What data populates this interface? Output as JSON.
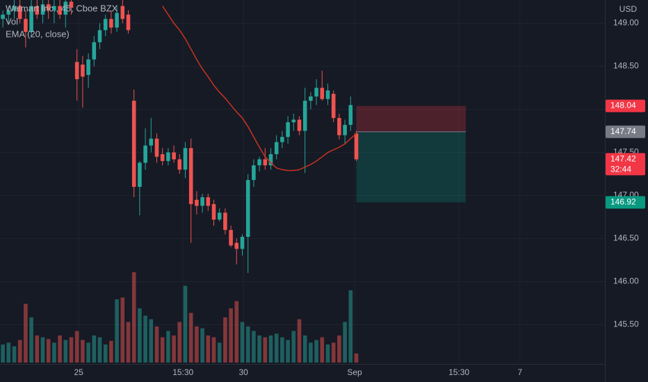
{
  "chart_data": {
    "type": "candlestick",
    "title": "Walmart Inc., 45, Cboe BZX",
    "volume_name": "Vol",
    "currency": "USD",
    "up_color": "#26a69a",
    "down_color": "#ef5350",
    "categories": [
      null,
      null,
      null,
      null,
      null,
      null,
      null,
      null,
      null,
      null,
      null,
      null,
      null,
      null,
      null,
      null,
      null,
      null,
      null,
      null,
      null,
      null,
      null,
      null,
      null,
      null,
      null,
      null,
      null,
      null,
      null,
      null,
      null,
      null,
      null,
      null,
      null,
      null,
      null,
      null,
      null,
      null,
      null,
      null,
      null,
      null,
      null,
      null,
      null,
      null,
      null,
      null,
      null,
      null,
      null,
      null,
      null,
      null,
      null,
      null,
      null,
      null,
      null
    ],
    "open": [
      149.05,
      149.1,
      149.15,
      149.2,
      149.05,
      148.9,
      149.2,
      149.1,
      149.22,
      149.15,
      149.2,
      149.1,
      149.25,
      148.55,
      148.52,
      148.4,
      148.58,
      148.78,
      148.92,
      149.05,
      148.95,
      149.2,
      149.1,
      148.1,
      147.1,
      147.38,
      147.58,
      147.66,
      147.48,
      147.4,
      147.5,
      147.42,
      147.3,
      147.55,
      146.95,
      146.88,
      146.98,
      146.9,
      146.72,
      146.8,
      146.6,
      146.45,
      146.38,
      146.52,
      147.18,
      147.35,
      147.42,
      147.35,
      147.48,
      147.62,
      147.68,
      147.85,
      147.88,
      147.75,
      148.1,
      148.15,
      148.25,
      148.12,
      148.18,
      147.9,
      147.7,
      147.82,
      147.72
    ],
    "high": [
      149.15,
      149.2,
      149.27,
      149.27,
      149.15,
      149.27,
      149.27,
      149.27,
      149.27,
      149.27,
      149.27,
      149.27,
      149.27,
      148.7,
      148.62,
      148.65,
      148.85,
      149.0,
      149.1,
      149.15,
      149.2,
      149.27,
      149.15,
      148.23,
      147.4,
      147.78,
      147.9,
      147.72,
      147.55,
      147.55,
      147.58,
      147.48,
      147.62,
      147.66,
      147.05,
      147.02,
      147.02,
      146.95,
      146.85,
      146.85,
      146.65,
      146.5,
      146.55,
      147.25,
      147.42,
      147.45,
      147.55,
      147.55,
      147.7,
      147.75,
      147.92,
      147.95,
      147.92,
      148.25,
      148.2,
      148.35,
      148.45,
      148.3,
      148.22,
      147.95,
      147.88,
      148.15,
      147.75
    ],
    "low": [
      148.95,
      149.0,
      149.05,
      149.0,
      148.72,
      148.85,
      149.05,
      149.0,
      149.05,
      149.0,
      149.05,
      148.95,
      149.1,
      148.1,
      148.02,
      148.25,
      148.5,
      148.7,
      148.85,
      148.88,
      148.9,
      149.0,
      148.88,
      146.98,
      146.77,
      147.3,
      147.5,
      147.38,
      147.35,
      147.35,
      147.38,
      147.25,
      147.2,
      146.45,
      146.78,
      146.8,
      146.82,
      146.65,
      146.7,
      146.55,
      146.4,
      146.2,
      146.3,
      146.1,
      147.1,
      147.28,
      147.3,
      147.3,
      147.42,
      147.55,
      147.6,
      147.75,
      147.7,
      147.26,
      148.0,
      148.05,
      148.1,
      148.05,
      147.85,
      147.65,
      147.6,
      147.75,
      147.4
    ],
    "close": [
      149.1,
      149.15,
      149.2,
      149.05,
      148.9,
      149.2,
      149.1,
      149.22,
      149.15,
      149.2,
      149.1,
      149.25,
      149.18,
      148.35,
      148.38,
      148.58,
      148.78,
      148.92,
      149.05,
      148.95,
      149.12,
      149.05,
      148.92,
      147.1,
      147.38,
      147.58,
      147.66,
      147.45,
      147.4,
      147.5,
      147.42,
      147.3,
      147.55,
      146.9,
      146.88,
      146.98,
      146.88,
      146.72,
      146.8,
      146.6,
      146.42,
      146.38,
      146.52,
      147.18,
      147.35,
      147.42,
      147.35,
      147.48,
      147.62,
      147.68,
      147.85,
      147.88,
      147.75,
      148.1,
      148.15,
      148.25,
      148.12,
      148.22,
      147.9,
      147.7,
      147.82,
      148.05,
      147.42
    ],
    "volume": [
      20,
      22,
      18,
      25,
      65,
      50,
      30,
      28,
      26,
      22,
      30,
      25,
      28,
      35,
      25,
      22,
      30,
      28,
      20,
      24,
      70,
      72,
      45,
      100,
      60,
      52,
      48,
      40,
      28,
      35,
      30,
      45,
      85,
      55,
      40,
      38,
      30,
      28,
      22,
      50,
      60,
      68,
      45,
      40,
      35,
      30,
      28,
      30,
      32,
      28,
      25,
      35,
      48,
      30,
      22,
      25,
      28,
      20,
      22,
      30,
      45,
      80,
      10
    ],
    "ema": {
      "name": "EMA (20, close)",
      "color": "#c9331f",
      "values": [
        null,
        null,
        null,
        null,
        null,
        null,
        null,
        null,
        null,
        null,
        null,
        null,
        null,
        null,
        null,
        null,
        null,
        null,
        null,
        null,
        null,
        null,
        null,
        null,
        null,
        null,
        null,
        null,
        149.2,
        149.1,
        149.0,
        148.92,
        148.82,
        148.7,
        148.58,
        148.47,
        148.38,
        148.28,
        148.2,
        148.13,
        148.05,
        147.97,
        147.9,
        147.8,
        147.68,
        147.56,
        147.45,
        147.38,
        147.32,
        147.3,
        147.29,
        147.29,
        147.3,
        147.33,
        147.36,
        147.4,
        147.45,
        147.5,
        147.53,
        147.56,
        147.6,
        147.66,
        147.72
      ]
    },
    "ylim": [
      145.06,
      149.27
    ],
    "yticks": [
      {
        "value": 145.5,
        "label": "145.50"
      },
      {
        "value": 146,
        "label": "146.00"
      },
      {
        "value": 146.5,
        "label": "146.50"
      },
      {
        "value": 147,
        "label": "147.00"
      },
      {
        "value": 147.5,
        "label": "147.50"
      },
      {
        "value": 148,
        "label": "148.00"
      },
      {
        "value": 148.5,
        "label": "148.50"
      },
      {
        "value": 149,
        "label": "149.00"
      }
    ],
    "xlim": [
      -0.5,
      105.6
    ],
    "xticks": [
      {
        "value": 13.3,
        "label": "25"
      },
      {
        "value": 31.6,
        "label": "15:30"
      },
      {
        "value": 42.2,
        "label": "30"
      },
      {
        "value": 61.7,
        "label": "Sep"
      },
      {
        "value": 80,
        "label": "15:30"
      },
      {
        "value": 90.7,
        "label": "7"
      }
    ],
    "grid": true,
    "position": {
      "x_start": 62,
      "x_end": 81.2,
      "stop": 148.04,
      "entry": 147.74,
      "target": 146.92
    },
    "price_lines": [
      {
        "price": 148.04,
        "color": "#f23645"
      },
      {
        "price": 147.74,
        "color": "#787b86"
      },
      {
        "price": 147.42,
        "color": "#f23645"
      },
      {
        "price": 146.92,
        "color": "#089981"
      }
    ],
    "countdown": "32:44"
  }
}
